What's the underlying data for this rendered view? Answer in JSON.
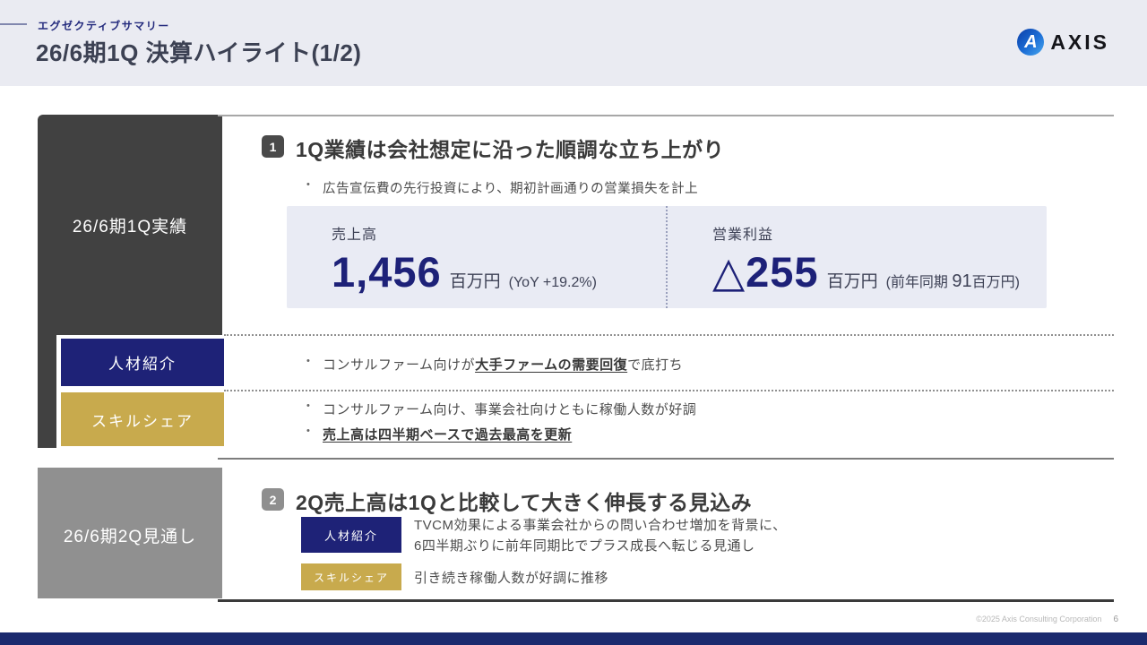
{
  "header": {
    "eyebrow": "エグゼクティブサマリー",
    "title": "26/6期1Q 決算ハイライト(1/2)",
    "logo_mark": "A",
    "logo_text": "AXIS"
  },
  "colors": {
    "navy": "#1e2277",
    "gold": "#c8aa4d",
    "dark_panel": "#414141",
    "gray_panel": "#909090",
    "metric_bg": "#e9ebf4",
    "bottom_bar": "#1b2a6e"
  },
  "s1": {
    "side_label": "26/6期1Q実績",
    "num": "1",
    "heading": "1Q業績は会社想定に沿った順調な立ち上がり",
    "bullet": "広告宣伝費の先行投資により、期初計画通りの営業損失を計上",
    "rev_label": "売上高",
    "rev_value": "1,456",
    "rev_unit": "百万円",
    "rev_note": "(YoY +19.2%)",
    "op_label": "営業利益",
    "op_value": "△255",
    "op_unit": "百万円",
    "op_note_pre": "(前年同期 ",
    "op_note_num": "91",
    "op_note_post": "百万円)",
    "seg1_name": "人材紹介",
    "seg1_pre": "コンサルファーム向けが",
    "seg1_strong": "大手ファームの需要回復",
    "seg1_post": "で底打ち",
    "seg2_name": "スキルシェア",
    "seg2_b1": "コンサルファーム向け、事業会社向けともに稼働人数が好調",
    "seg2_b2": "売上高は四半期ベースで過去最高を更新"
  },
  "s2": {
    "side_label": "26/6期2Q見通し",
    "num": "2",
    "heading": "2Q売上高は1Qと比較して大きく伸長する見込み",
    "row1_badge": "人材紹介",
    "row1_line1": "TVCM効果による事業会社からの問い合わせ増加を背景に、",
    "row1_line2": "6四半期ぶりに前年同期比でプラス成長へ転じる見通し",
    "row2_badge": "スキルシェア",
    "row2_text": "引き続き稼働人数が好調に推移"
  },
  "footer": {
    "copyright": "©2025 Axis Consulting Corporation",
    "page": "6"
  }
}
